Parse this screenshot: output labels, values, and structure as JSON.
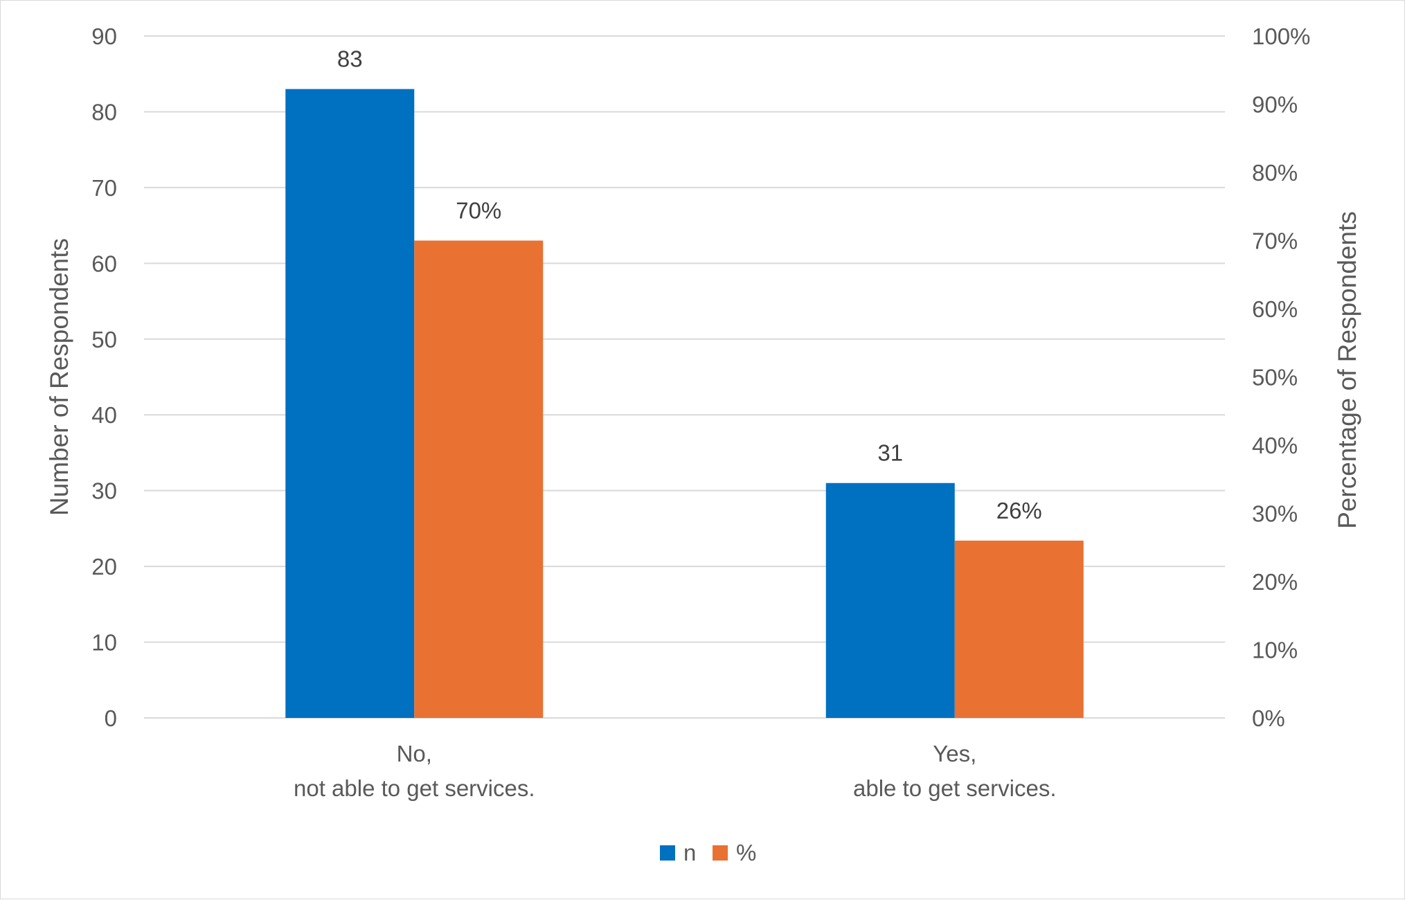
{
  "chart_data": {
    "type": "bar",
    "title": "",
    "categories": [
      [
        "No,",
        "not able to get services."
      ],
      [
        "Yes,",
        "able to get services."
      ]
    ],
    "series": [
      {
        "name": "n",
        "axis": "left",
        "color": "#0070C0",
        "values": [
          83,
          31
        ],
        "data_labels": [
          "83",
          "31"
        ]
      },
      {
        "name": "%",
        "axis": "right",
        "color": "#E97132",
        "values": [
          70,
          26
        ],
        "data_labels": [
          "70%",
          "26%"
        ]
      }
    ],
    "y_left": {
      "label": "Number of Respondents",
      "ylim": [
        0,
        90
      ],
      "ticks": [
        0,
        10,
        20,
        30,
        40,
        50,
        60,
        70,
        80,
        90
      ],
      "tick_labels": [
        "0",
        "10",
        "20",
        "30",
        "40",
        "50",
        "60",
        "70",
        "80",
        "90"
      ]
    },
    "y_right": {
      "label": "Percentage of Respondents",
      "ylim": [
        0,
        100
      ],
      "ticks": [
        0,
        10,
        20,
        30,
        40,
        50,
        60,
        70,
        80,
        90,
        100
      ],
      "tick_labels": [
        "0%",
        "10%",
        "20%",
        "30%",
        "40%",
        "50%",
        "60%",
        "70%",
        "80%",
        "90%",
        "100%"
      ]
    },
    "grid": true,
    "legend": "bottom-center",
    "colors": {
      "gridline": "#D9D9D9",
      "text": "#595959",
      "data_label": "#404040"
    }
  }
}
